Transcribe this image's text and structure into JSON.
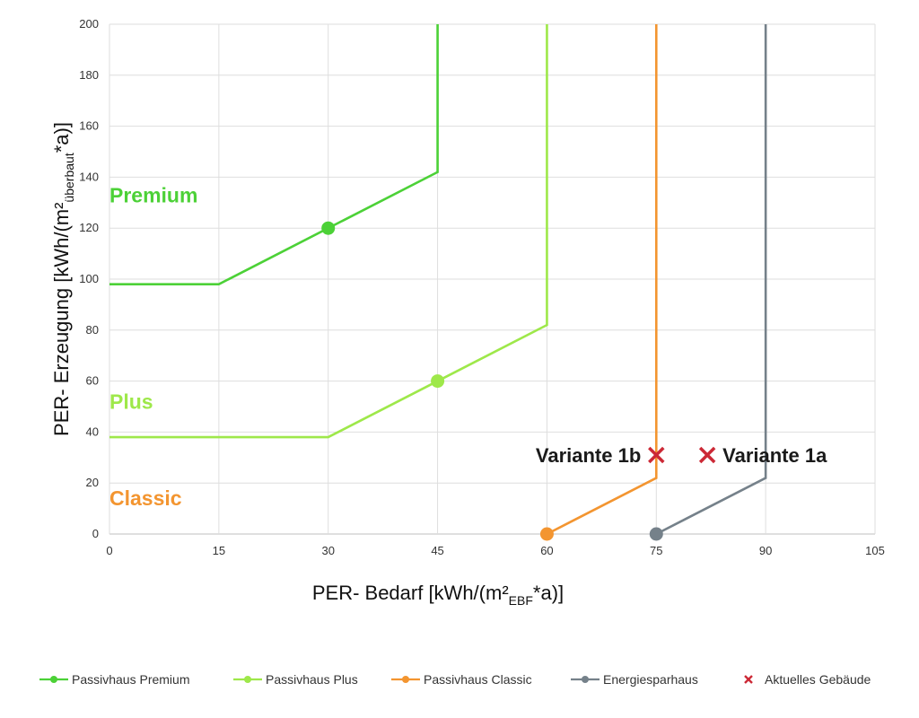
{
  "chart_data": {
    "type": "line",
    "xlabel": "PER- Bedarf [kWh/(m²EBF*a)]",
    "xlabel_main": "PER- Bedarf [kWh/(m²",
    "xlabel_sub": "EBF",
    "xlabel_end": "*a)]",
    "ylabel": "PER- Erzeugung [kWh/(m²überbaut*a)]",
    "ylabel_main": "PER- Erzeugung [kWh/(m²",
    "ylabel_sub": "überbaut",
    "ylabel_end": "*a)]",
    "xlim": [
      0,
      105
    ],
    "ylim": [
      0,
      200
    ],
    "x_ticks": [
      0,
      15,
      30,
      45,
      60,
      75,
      90,
      105
    ],
    "y_ticks": [
      0,
      20,
      40,
      60,
      80,
      100,
      120,
      140,
      160,
      180,
      200
    ],
    "grid": true,
    "legend_position": "bottom",
    "series": [
      {
        "name": "Passivhaus Premium",
        "color": "#4cd137",
        "points": [
          [
            0,
            98
          ],
          [
            15,
            98
          ],
          [
            45,
            142
          ],
          [
            45,
            200
          ]
        ],
        "marker": [
          30,
          120
        ]
      },
      {
        "name": "Passivhaus Plus",
        "color": "#9ee84a",
        "points": [
          [
            0,
            38
          ],
          [
            30,
            38
          ],
          [
            60,
            82
          ],
          [
            60,
            200
          ]
        ],
        "marker": [
          45,
          60
        ]
      },
      {
        "name": "Passivhaus Classic",
        "color": "#f39530",
        "points": [
          [
            60,
            0
          ],
          [
            75,
            22
          ],
          [
            75,
            200
          ]
        ],
        "marker": [
          60,
          0
        ]
      },
      {
        "name": "Energiesparhaus",
        "color": "#75818a",
        "points": [
          [
            75,
            0
          ],
          [
            90,
            22
          ],
          [
            90,
            200
          ]
        ],
        "marker": [
          75,
          0
        ]
      }
    ],
    "buildings": {
      "name": "Aktuelles Gebäude",
      "color": "#cc2936",
      "points": [
        {
          "label": "Variante 1b",
          "x": 75,
          "y": 31,
          "label_side": "left"
        },
        {
          "label": "Variante 1a",
          "x": 82,
          "y": 31,
          "label_side": "right"
        }
      ]
    },
    "zone_labels": [
      {
        "text": "Premium",
        "y": 133,
        "color": "#4cd137"
      },
      {
        "text": "Plus",
        "y": 52,
        "color": "#9ee84a"
      },
      {
        "text": "Classic",
        "y": 14,
        "color": "#f39530"
      }
    ]
  }
}
